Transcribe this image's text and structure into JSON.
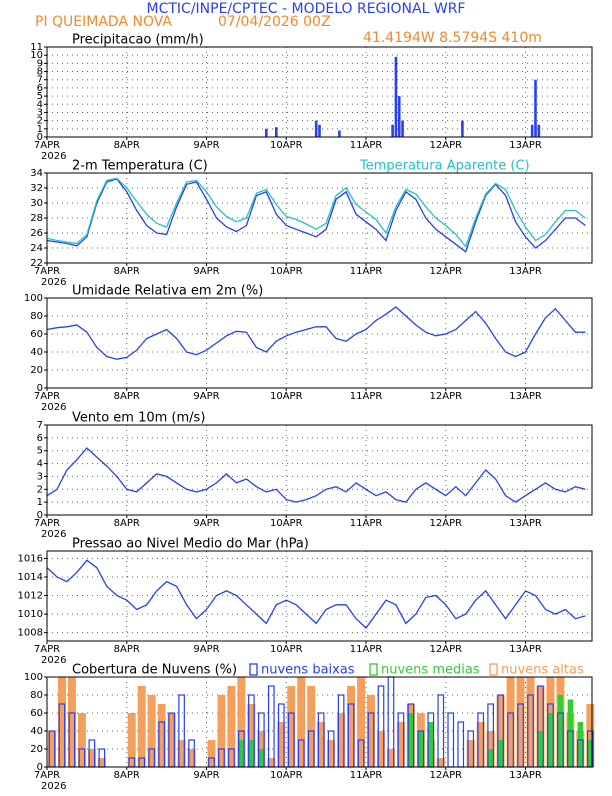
{
  "header": {
    "title": "MCTIC/INPE/CPTEC - MODELO REGIONAL WRF",
    "location": "PI QUEIMADA NOVA",
    "run": "07/04/2026 00Z",
    "coords": "41.4194W 8.5794S 410m"
  },
  "chart_data": {
    "year": "2026",
    "xlim": [
      0,
      164
    ],
    "xticks": [
      {
        "value": 0,
        "label": "7APR"
      },
      {
        "value": 24,
        "label": "8APR"
      },
      {
        "value": 48,
        "label": "9APR"
      },
      {
        "value": 72,
        "label": "10APR"
      },
      {
        "value": 96,
        "label": "11APR"
      },
      {
        "value": 120,
        "label": "12APR"
      },
      {
        "value": 144,
        "label": "13APR"
      }
    ],
    "x": [
      0,
      3,
      6,
      9,
      12,
      15,
      18,
      21,
      24,
      27,
      30,
      33,
      36,
      39,
      42,
      45,
      48,
      51,
      54,
      57,
      60,
      63,
      66,
      69,
      72,
      75,
      78,
      81,
      84,
      87,
      90,
      93,
      96,
      99,
      102,
      105,
      108,
      111,
      114,
      117,
      120,
      123,
      126,
      129,
      132,
      135,
      138,
      141,
      144,
      147,
      150,
      153,
      156,
      159,
      162
    ],
    "panels": [
      {
        "type": "bar",
        "title": "Precipitacao (mm/h)",
        "color": "#2a3ff0",
        "ylim": [
          0,
          11
        ],
        "yticks": [
          0,
          1,
          2,
          3,
          4,
          5,
          6,
          7,
          8,
          9,
          10,
          11
        ],
        "grid": true,
        "x": [
          66,
          69,
          81,
          82,
          88,
          104,
          105,
          106,
          107,
          125,
          146,
          147,
          148
        ],
        "values": [
          1.0,
          1.2,
          2.0,
          1.5,
          0.8,
          1.5,
          9.8,
          5.0,
          2.0,
          2.0,
          1.5,
          7.0,
          1.5
        ]
      },
      {
        "type": "line",
        "title": "2-m Temperatura (C)",
        "ylim": [
          22,
          34
        ],
        "yticks": [
          22,
          24,
          26,
          28,
          30,
          32,
          34
        ],
        "grid": true,
        "series": [
          {
            "color": "#2a3ff0",
            "values": [
              25.0,
              24.8,
              24.6,
              24.3,
              25.5,
              30.0,
              32.8,
              33.2,
              31.5,
              29.0,
              27.0,
              26.0,
              25.8,
              29.5,
              32.5,
              32.8,
              30.5,
              28.0,
              26.8,
              26.2,
              27.0,
              31.0,
              31.5,
              28.5,
              27.0,
              26.5,
              26.0,
              25.5,
              26.5,
              30.5,
              31.5,
              28.5,
              27.5,
              26.5,
              25.0,
              29.0,
              31.5,
              30.5,
              28.0,
              26.5,
              25.5,
              24.5,
              23.5,
              27.5,
              31.0,
              32.5,
              31.0,
              27.5,
              25.5,
              24.0,
              25.0,
              26.5,
              28.0,
              28.0,
              27.0
            ]
          },
          {
            "name": "Temperatura Aparente (C)",
            "color": "#1fc4c4",
            "values": [
              25.3,
              25.0,
              24.8,
              24.6,
              25.8,
              30.3,
              33.0,
              33.3,
              32.0,
              30.2,
              28.5,
              27.3,
              26.8,
              30.0,
              32.8,
              33.0,
              31.5,
              29.5,
              28.2,
              27.5,
              28.0,
              31.3,
              31.8,
              29.8,
              28.2,
              27.8,
              27.2,
              26.5,
              27.3,
              31.0,
              32.0,
              29.8,
              28.8,
              27.8,
              26.0,
              29.5,
              31.8,
              31.2,
              29.5,
              28.0,
              27.0,
              25.8,
              24.2,
              28.0,
              31.2,
              32.6,
              31.8,
              29.0,
              26.8,
              25.0,
              25.8,
              27.5,
              29.0,
              29.0,
              28.0
            ]
          }
        ]
      },
      {
        "type": "line",
        "title": "Umidade Relativa em 2m (%)",
        "ylim": [
          0,
          100
        ],
        "yticks": [
          0,
          20,
          40,
          60,
          80,
          100
        ],
        "grid": true,
        "series": [
          {
            "color": "#2a3ff0",
            "values": [
              65,
              67,
              68,
              70,
              62,
              45,
              35,
              32,
              34,
              42,
              55,
              60,
              65,
              55,
              40,
              37,
              42,
              50,
              58,
              63,
              62,
              45,
              40,
              52,
              58,
              62,
              65,
              68,
              68,
              55,
              52,
              60,
              65,
              75,
              82,
              90,
              80,
              70,
              62,
              58,
              60,
              65,
              75,
              85,
              72,
              55,
              40,
              35,
              40,
              60,
              78,
              88,
              75,
              62,
              62
            ]
          }
        ]
      },
      {
        "type": "line",
        "title": "Vento em 10m (m/s)",
        "ylim": [
          0,
          7
        ],
        "yticks": [
          0,
          1,
          2,
          3,
          4,
          5,
          6,
          7
        ],
        "grid": true,
        "series": [
          {
            "color": "#2a3ff0",
            "values": [
              1.5,
              2.0,
              3.5,
              4.3,
              5.2,
              4.5,
              3.8,
              3.0,
              2.0,
              1.8,
              2.5,
              3.2,
              3.0,
              2.5,
              2.0,
              1.8,
              2.0,
              2.5,
              3.2,
              2.5,
              2.8,
              2.2,
              1.8,
              2.0,
              1.2,
              1.0,
              1.2,
              1.5,
              2.0,
              2.2,
              1.8,
              2.5,
              2.0,
              1.5,
              1.8,
              1.2,
              1.0,
              2.0,
              2.5,
              2.0,
              1.5,
              2.2,
              1.5,
              2.5,
              3.5,
              2.8,
              1.5,
              1.0,
              1.5,
              2.0,
              2.5,
              2.0,
              1.8,
              2.2,
              2.0
            ]
          }
        ]
      },
      {
        "type": "line",
        "title": "Pressao ao Nivel Medio do Mar (hPa)",
        "ylim": [
          1007.1,
          1016.8
        ],
        "yticks": [
          1008,
          1010,
          1012,
          1014,
          1016
        ],
        "grid": true,
        "series": [
          {
            "color": "#2a3ff0",
            "values": [
              1015,
              1014,
              1013.5,
              1014.5,
              1015.8,
              1015,
              1013,
              1012,
              1011.5,
              1010.5,
              1011,
              1012.5,
              1013.5,
              1013,
              1011,
              1009.5,
              1010.5,
              1012,
              1012.5,
              1012,
              1011,
              1010,
              1009,
              1011,
              1011.5,
              1011,
              1010,
              1009,
              1010.5,
              1011,
              1011,
              1009.5,
              1008.5,
              1010,
              1011.5,
              1011,
              1009,
              1010,
              1011.8,
              1012,
              1011,
              1009.5,
              1010,
              1011.5,
              1012.5,
              1011,
              1009.5,
              1011,
              1012.5,
              1012,
              1010.5,
              1010,
              1010.5,
              1009.5,
              1009.8
            ]
          }
        ]
      },
      {
        "type": "bar",
        "title": "Cobertura de Nuvens (%)",
        "ylim": [
          0,
          100
        ],
        "yticks": [
          0,
          20,
          40,
          60,
          80,
          100
        ],
        "grid": true,
        "series": [
          {
            "name": "nuvens altas",
            "color": "#f4a05c",
            "values": [
              40,
              100,
              100,
              60,
              20,
              10,
              0,
              0,
              60,
              90,
              80,
              70,
              60,
              30,
              20,
              0,
              30,
              80,
              90,
              100,
              70,
              40,
              10,
              50,
              90,
              100,
              90,
              50,
              30,
              60,
              90,
              100,
              80,
              40,
              20,
              50,
              70,
              60,
              30,
              10,
              0,
              0,
              30,
              50,
              40,
              80,
              100,
              100,
              100,
              90,
              100,
              100,
              60,
              40,
              70
            ]
          },
          {
            "name": "nuvens medias",
            "color": "#33cc33",
            "values": [
              0,
              0,
              0,
              0,
              0,
              0,
              0,
              0,
              0,
              0,
              0,
              0,
              0,
              0,
              0,
              0,
              0,
              0,
              0,
              30,
              30,
              20,
              0,
              0,
              0,
              0,
              0,
              0,
              0,
              0,
              0,
              0,
              0,
              0,
              0,
              0,
              60,
              40,
              50,
              0,
              0,
              0,
              0,
              0,
              20,
              30,
              0,
              0,
              0,
              40,
              60,
              80,
              75,
              50,
              30
            ]
          },
          {
            "name": "nuvens baixas",
            "color": "#2a3ff0",
            "outline": true,
            "values": [
              40,
              70,
              60,
              20,
              30,
              20,
              0,
              0,
              10,
              10,
              20,
              50,
              60,
              80,
              30,
              0,
              10,
              20,
              20,
              40,
              80,
              60,
              90,
              70,
              60,
              30,
              40,
              60,
              40,
              80,
              70,
              30,
              60,
              90,
              100,
              60,
              70,
              40,
              60,
              80,
              60,
              50,
              40,
              60,
              70,
              80,
              60,
              70,
              80,
              90,
              70,
              60,
              40,
              30,
              40
            ]
          }
        ]
      }
    ]
  }
}
